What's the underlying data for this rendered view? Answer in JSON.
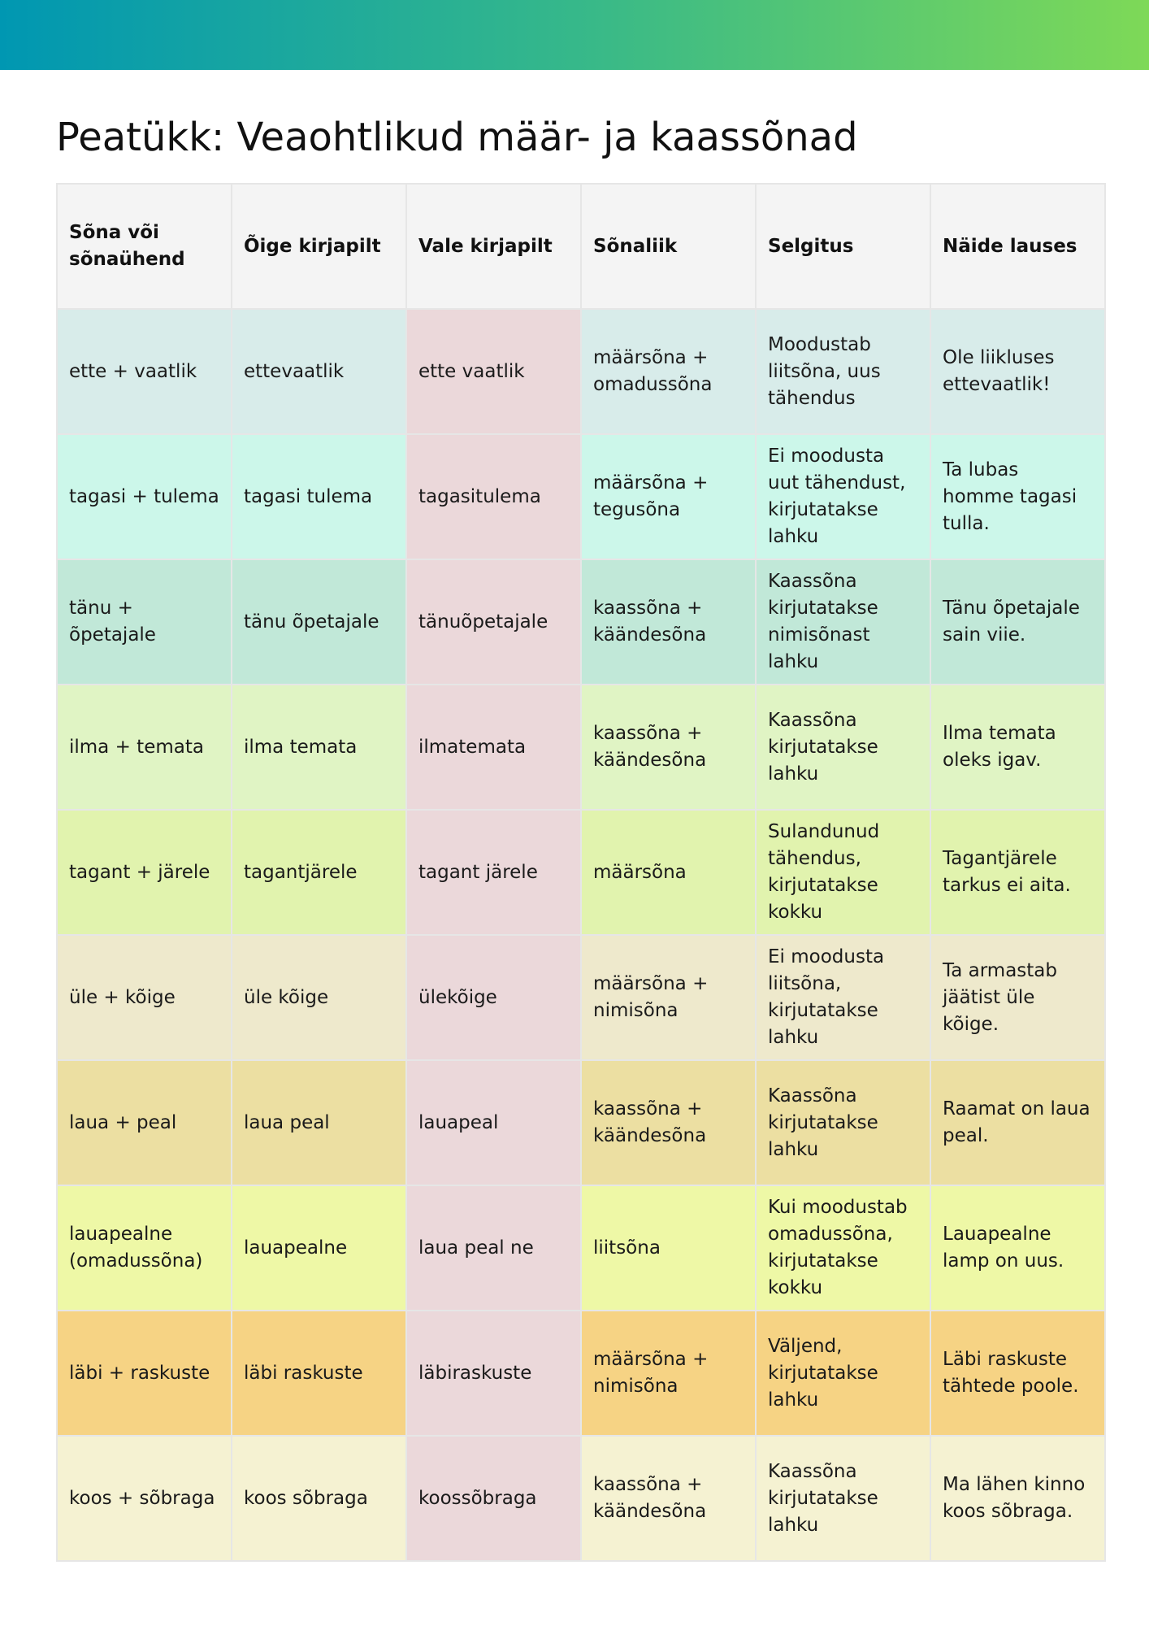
{
  "title": "Peatükk: Veaohtlikud määr- ja kaassõnad",
  "colors": {
    "header_gradient": [
      "#0097b2",
      "#36b88a",
      "#7ed957"
    ],
    "header_row": "#f4f4f4",
    "wrong_column": "#ebd8da"
  },
  "headers": [
    "Sõna või sõnaühend",
    "Õige kirjapilt",
    "Vale kirjapilt",
    "Sõnaliik",
    "Selgitus",
    "Näide lauses"
  ],
  "rows": [
    {
      "color": "#d8ecea",
      "cells": [
        "ette + vaatlik",
        "ettevaatlik",
        "ette vaatlik",
        "määrsõna + omadussõna",
        "Moodustab liitsõna, uus tähendus",
        "Ole liikluses ettevaatlik!"
      ]
    },
    {
      "color": "#ccf7ea",
      "cells": [
        "tagasi + tulema",
        "tagasi tulema",
        "tagasitulema",
        "määrsõna + tegusõna",
        "Ei moodusta uut tähendust, kirjutatakse lahku",
        "Ta lubas homme tagasi tulla."
      ]
    },
    {
      "color": "#c1e8d8",
      "cells": [
        "tänu + õpetajale",
        "tänu õpetajale",
        "tänuõpetajale",
        "kaassõna + käändesõna",
        "Kaassõna kirjutatakse nimisõnast lahku",
        "Tänu õpetajale sain viie."
      ]
    },
    {
      "color": "#e0f4c4",
      "cells": [
        "ilma + temata",
        "ilma temata",
        "ilmatemata",
        "kaassõna + käändesõna",
        "Kaassõna kirjutatakse lahku",
        "Ilma temata oleks igav."
      ]
    },
    {
      "color": "#e1f3ae",
      "cells": [
        "tagant + järele",
        "tagantjärele",
        "tagant järele",
        "määrsõna",
        "Sulandunud tähendus, kirjutatakse kokku",
        "Tagantjärele tarkus ei aita."
      ]
    },
    {
      "color": "#eee9cc",
      "cells": [
        "üle + kõige",
        "üle kõige",
        "ülekõige",
        "määrsõna + nimisõna",
        "Ei moodusta liitsõna, kirjutatakse lahku",
        "Ta armastab jäätist üle kõige."
      ]
    },
    {
      "color": "#ecdfa2",
      "cells": [
        "laua + peal",
        "laua peal",
        "lauapeal",
        "kaassõna + käändesõna",
        "Kaassõna kirjutatakse lahku",
        "Raamat on laua peal."
      ]
    },
    {
      "color": "#eef8a6",
      "cells": [
        "lauapealne (omadussõna)",
        "lauapealne",
        "laua peal ne",
        "liitsõna",
        "Kui moodustab omadussõna, kirjutatakse kokku",
        "Lauapealne lamp on uus."
      ]
    },
    {
      "color": "#f6d384",
      "cells": [
        "läbi + raskuste",
        "läbi raskuste",
        "läbiraskuste",
        "määrsõna + nimisõna",
        "Väljend, kirjutatakse lahku",
        "Läbi raskuste tähtede poole."
      ]
    },
    {
      "color": "#f5f2d2",
      "cells": [
        "koos + sõbraga",
        "koos sõbraga",
        "koossõbraga",
        "kaassõna + käändesõna",
        "Kaassõna kirjutatakse lahku",
        "Ma lähen kinno koos sõbraga."
      ]
    }
  ]
}
